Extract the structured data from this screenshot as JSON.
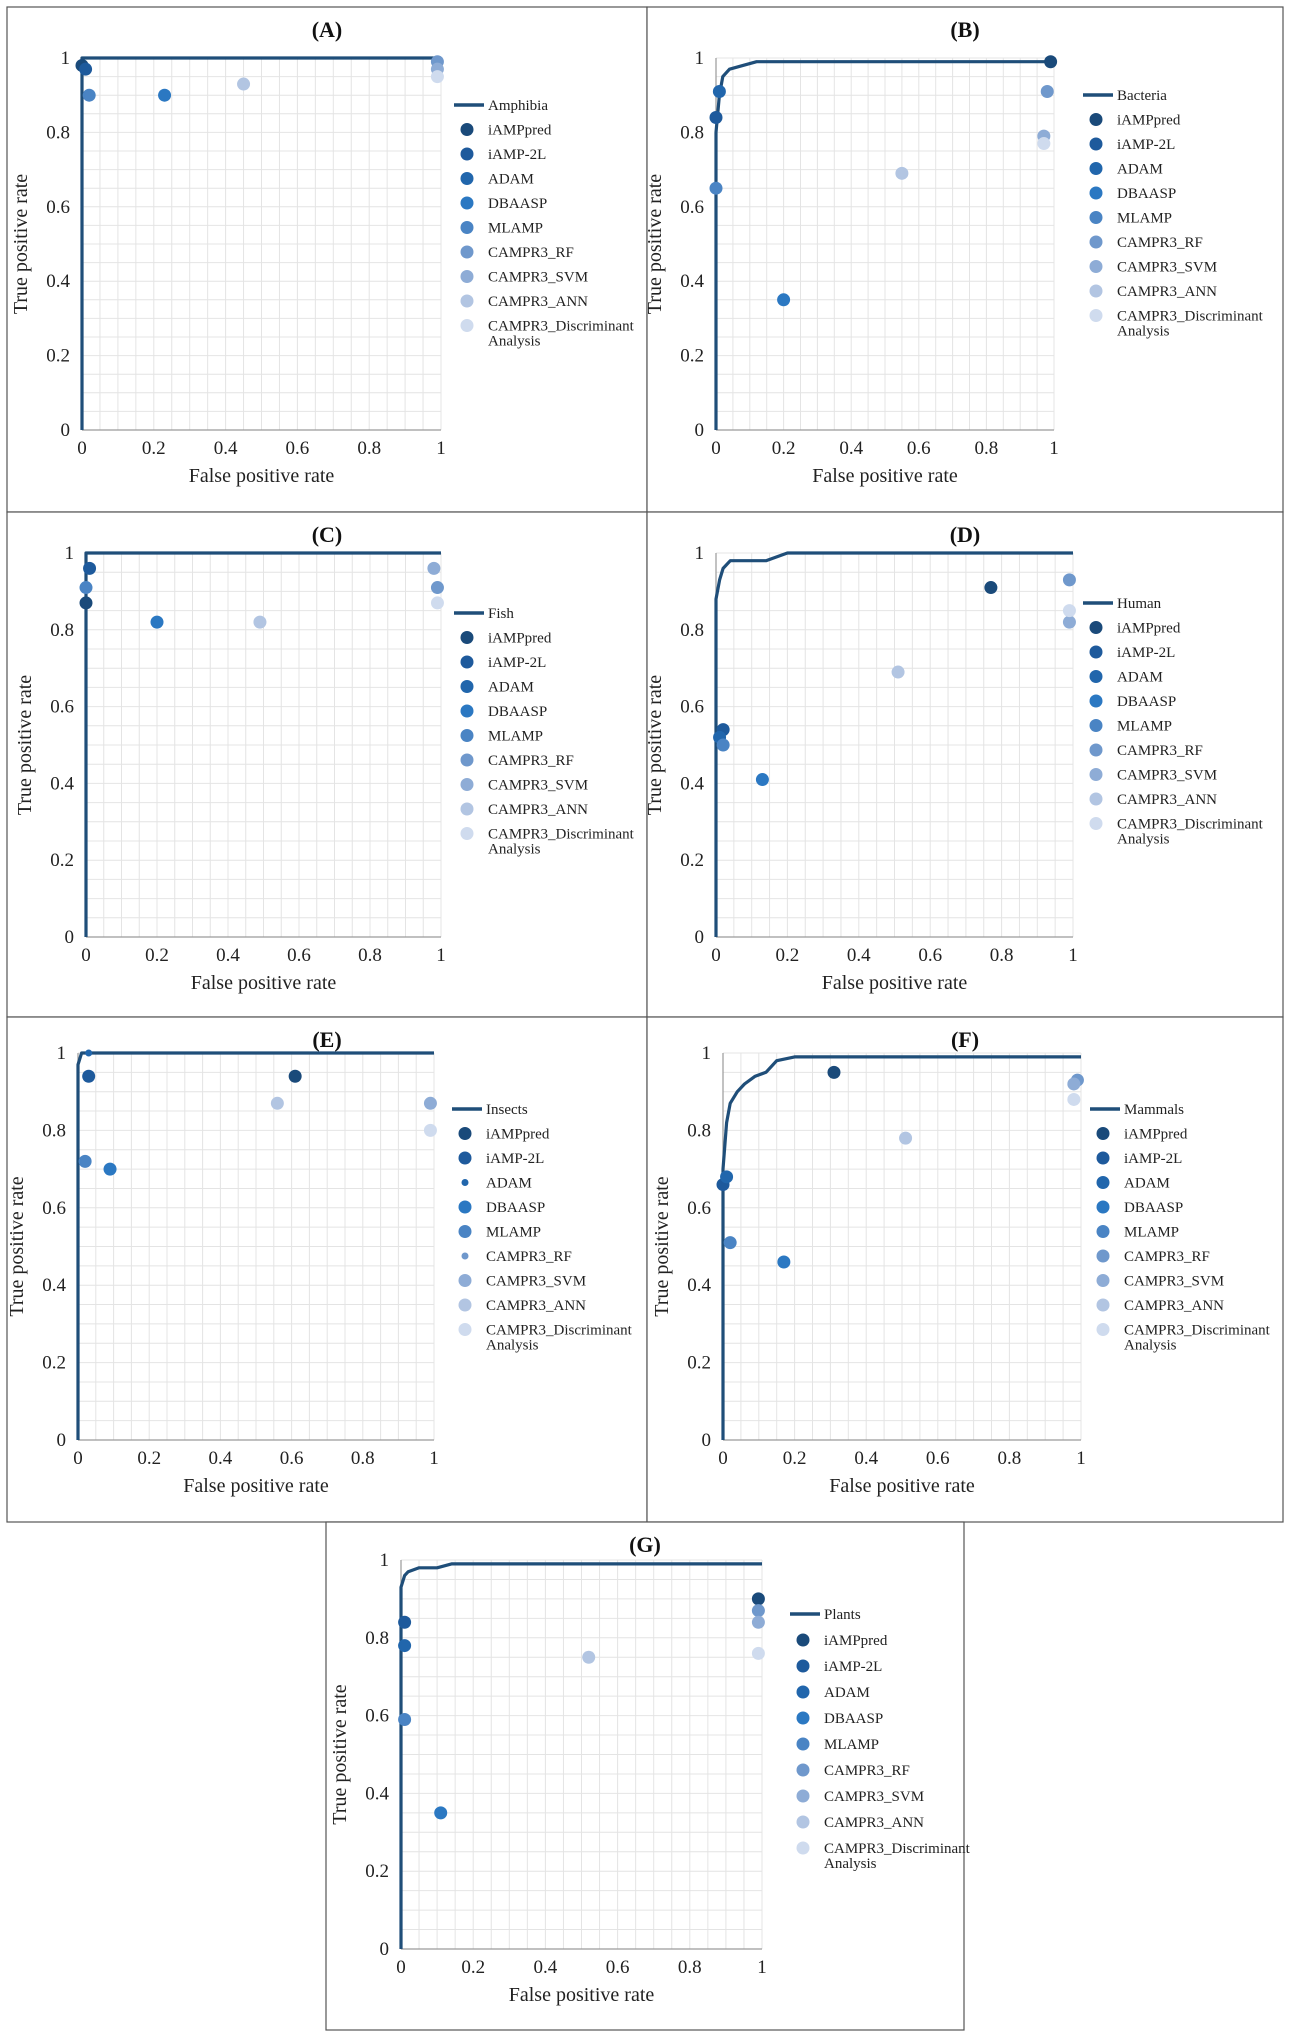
{
  "colors": {
    "roc": "#1f4e79",
    "iAMPpred": "#1a4a7a",
    "iAMP-2L": "#1e5a9c",
    "ADAM": "#2166ac",
    "DBAASP": "#2b78c2",
    "MLAMP": "#4a84c4",
    "CAMPR3_RF": "#6f98cc",
    "CAMPR3_SVM": "#8eacd6",
    "CAMPR3_ANN": "#b2c5e2",
    "CAMPR3_Discriminant": "#cfdbee"
  },
  "common": {
    "xlabel": "False positive rate",
    "ylabel": "True positive rate",
    "x_ticks": [
      "0",
      "0.2",
      "0.4",
      "0.6",
      "0.8",
      "1"
    ],
    "y_ticks": [
      "0",
      "0.2",
      "0.4",
      "0.6",
      "0.8",
      "1"
    ],
    "methods": [
      {
        "key": "iAMPpred",
        "label": "iAMPpred"
      },
      {
        "key": "iAMP-2L",
        "label": "iAMP-2L"
      },
      {
        "key": "ADAM",
        "label": "ADAM"
      },
      {
        "key": "DBAASP",
        "label": "DBAASP"
      },
      {
        "key": "MLAMP",
        "label": "MLAMP"
      },
      {
        "key": "CAMPR3_RF",
        "label": "CAMPR3_RF"
      },
      {
        "key": "CAMPR3_SVM",
        "label": "CAMPR3_SVM"
      },
      {
        "key": "CAMPR3_ANN",
        "label": "CAMPR3_ANN"
      },
      {
        "key": "CAMPR3_Discriminant",
        "label": "CAMPR3_Discriminant",
        "label2": "Analysis"
      }
    ]
  },
  "chart_data": [
    {
      "type": "scatter",
      "title": "(A)",
      "series_name": "Amphibia",
      "xlabel": "False positive rate",
      "ylabel": "True positive rate",
      "xlim": [
        0,
        1
      ],
      "ylim": [
        0,
        1
      ],
      "grid": true,
      "legend": "right",
      "roc": [
        [
          0,
          0
        ],
        [
          0,
          1
        ],
        [
          1,
          1
        ]
      ],
      "points": [
        {
          "m": "iAMPpred",
          "x": 0.0,
          "y": 0.98
        },
        {
          "m": "iAMP-2L",
          "x": 0.01,
          "y": 0.97
        },
        {
          "m": "DBAASP",
          "x": 0.23,
          "y": 0.9
        },
        {
          "m": "MLAMP",
          "x": 0.02,
          "y": 0.9
        },
        {
          "m": "CAMPR3_RF",
          "x": 0.99,
          "y": 0.99
        },
        {
          "m": "CAMPR3_SVM",
          "x": 0.99,
          "y": 0.97
        },
        {
          "m": "CAMPR3_ANN",
          "x": 0.45,
          "y": 0.93
        },
        {
          "m": "CAMPR3_Discriminant",
          "x": 0.99,
          "y": 0.95
        }
      ]
    },
    {
      "type": "scatter",
      "title": "(B)",
      "series_name": "Bacteria",
      "xlabel": "False positive rate",
      "ylabel": "True positive rate",
      "xlim": [
        0,
        1
      ],
      "ylim": [
        0,
        1
      ],
      "grid": true,
      "legend": "right",
      "roc": [
        [
          0,
          0
        ],
        [
          0,
          0.8
        ],
        [
          0.01,
          0.9
        ],
        [
          0.02,
          0.95
        ],
        [
          0.04,
          0.97
        ],
        [
          0.08,
          0.98
        ],
        [
          0.12,
          0.99
        ],
        [
          1,
          0.99
        ]
      ],
      "points": [
        {
          "m": "iAMPpred",
          "x": 0.99,
          "y": 0.99
        },
        {
          "m": "iAMP-2L",
          "x": 0.0,
          "y": 0.84
        },
        {
          "m": "ADAM",
          "x": 0.01,
          "y": 0.91
        },
        {
          "m": "DBAASP",
          "x": 0.2,
          "y": 0.35
        },
        {
          "m": "MLAMP",
          "x": 0.0,
          "y": 0.65
        },
        {
          "m": "CAMPR3_RF",
          "x": 0.98,
          "y": 0.91
        },
        {
          "m": "CAMPR3_SVM",
          "x": 0.97,
          "y": 0.79
        },
        {
          "m": "CAMPR3_ANN",
          "x": 0.55,
          "y": 0.69
        },
        {
          "m": "CAMPR3_Discriminant",
          "x": 0.97,
          "y": 0.77
        }
      ]
    },
    {
      "type": "scatter",
      "title": "(C)",
      "series_name": "Fish",
      "xlabel": "False positive rate",
      "ylabel": "True positive rate",
      "xlim": [
        0,
        1
      ],
      "ylim": [
        0,
        1
      ],
      "grid": true,
      "legend": "right",
      "roc": [
        [
          0,
          0
        ],
        [
          0,
          1
        ],
        [
          1,
          1
        ]
      ],
      "points": [
        {
          "m": "iAMPpred",
          "x": 0.0,
          "y": 0.87
        },
        {
          "m": "iAMP-2L",
          "x": 0.01,
          "y": 0.96
        },
        {
          "m": "DBAASP",
          "x": 0.2,
          "y": 0.82
        },
        {
          "m": "MLAMP",
          "x": 0.0,
          "y": 0.91
        },
        {
          "m": "CAMPR3_RF",
          "x": 0.99,
          "y": 0.91
        },
        {
          "m": "CAMPR3_SVM",
          "x": 0.98,
          "y": 0.96
        },
        {
          "m": "CAMPR3_ANN",
          "x": 0.49,
          "y": 0.82
        },
        {
          "m": "CAMPR3_Discriminant",
          "x": 0.99,
          "y": 0.87
        }
      ]
    },
    {
      "type": "scatter",
      "title": "(D)",
      "series_name": "Human",
      "xlabel": "False positive rate",
      "ylabel": "True positive rate",
      "xlim": [
        0,
        1
      ],
      "ylim": [
        0,
        1
      ],
      "grid": true,
      "legend": "right",
      "roc": [
        [
          0,
          0
        ],
        [
          0,
          0.88
        ],
        [
          0.01,
          0.93
        ],
        [
          0.02,
          0.96
        ],
        [
          0.04,
          0.98
        ],
        [
          0.14,
          0.98
        ],
        [
          0.2,
          1
        ],
        [
          1,
          1
        ]
      ],
      "points": [
        {
          "m": "iAMPpred",
          "x": 0.77,
          "y": 0.91
        },
        {
          "m": "iAMP-2L",
          "x": 0.02,
          "y": 0.54
        },
        {
          "m": "ADAM",
          "x": 0.01,
          "y": 0.52
        },
        {
          "m": "DBAASP",
          "x": 0.13,
          "y": 0.41
        },
        {
          "m": "MLAMP",
          "x": 0.02,
          "y": 0.5
        },
        {
          "m": "CAMPR3_RF",
          "x": 0.99,
          "y": 0.93
        },
        {
          "m": "CAMPR3_SVM",
          "x": 0.99,
          "y": 0.82
        },
        {
          "m": "CAMPR3_ANN",
          "x": 0.51,
          "y": 0.69
        },
        {
          "m": "CAMPR3_Discriminant",
          "x": 0.99,
          "y": 0.85
        }
      ]
    },
    {
      "type": "scatter",
      "title": "(E)",
      "series_name": "Insects",
      "xlabel": "False positive rate",
      "ylabel": "True positive rate",
      "xlim": [
        0,
        1
      ],
      "ylim": [
        0,
        1
      ],
      "grid": true,
      "legend": "right",
      "roc": [
        [
          0,
          0
        ],
        [
          0,
          0.97
        ],
        [
          0.01,
          1
        ],
        [
          1,
          1
        ]
      ],
      "points": [
        {
          "m": "iAMPpred",
          "x": 0.61,
          "y": 0.94
        },
        {
          "m": "iAMP-2L",
          "x": 0.03,
          "y": 0.94
        },
        {
          "m": "ADAM",
          "x": 0.03,
          "y": 1.0
        },
        {
          "m": "DBAASP",
          "x": 0.09,
          "y": 0.7
        },
        {
          "m": "MLAMP",
          "x": 0.02,
          "y": 0.72
        },
        {
          "m": "CAMPR3_SVM",
          "x": 0.99,
          "y": 0.87
        },
        {
          "m": "CAMPR3_ANN",
          "x": 0.56,
          "y": 0.87
        },
        {
          "m": "CAMPR3_Discriminant",
          "x": 0.99,
          "y": 0.8
        }
      ]
    },
    {
      "type": "scatter",
      "title": "(F)",
      "series_name": "Mammals",
      "xlabel": "False positive rate",
      "ylabel": "True positive rate",
      "xlim": [
        0,
        1
      ],
      "ylim": [
        0,
        1
      ],
      "grid": true,
      "legend": "right",
      "roc": [
        [
          0,
          0
        ],
        [
          0,
          0.7
        ],
        [
          0.01,
          0.82
        ],
        [
          0.02,
          0.87
        ],
        [
          0.04,
          0.9
        ],
        [
          0.06,
          0.92
        ],
        [
          0.09,
          0.94
        ],
        [
          0.12,
          0.95
        ],
        [
          0.15,
          0.98
        ],
        [
          0.2,
          0.99
        ],
        [
          1,
          0.99
        ]
      ],
      "points": [
        {
          "m": "iAMPpred",
          "x": 0.31,
          "y": 0.95
        },
        {
          "m": "iAMP-2L",
          "x": 0.0,
          "y": 0.66
        },
        {
          "m": "ADAM",
          "x": 0.01,
          "y": 0.68
        },
        {
          "m": "DBAASP",
          "x": 0.17,
          "y": 0.46
        },
        {
          "m": "MLAMP",
          "x": 0.02,
          "y": 0.51
        },
        {
          "m": "CAMPR3_RF",
          "x": 0.99,
          "y": 0.93
        },
        {
          "m": "CAMPR3_SVM",
          "x": 0.98,
          "y": 0.92
        },
        {
          "m": "CAMPR3_ANN",
          "x": 0.51,
          "y": 0.78
        },
        {
          "m": "CAMPR3_Discriminant",
          "x": 0.98,
          "y": 0.88
        }
      ]
    },
    {
      "type": "scatter",
      "title": "(G)",
      "series_name": "Plants",
      "xlabel": "False positive rate",
      "ylabel": "True positive rate",
      "xlim": [
        0,
        1
      ],
      "ylim": [
        0,
        1
      ],
      "grid": true,
      "legend": "right",
      "roc": [
        [
          0,
          0
        ],
        [
          0,
          0.93
        ],
        [
          0.01,
          0.96
        ],
        [
          0.02,
          0.97
        ],
        [
          0.05,
          0.98
        ],
        [
          0.1,
          0.98
        ],
        [
          0.14,
          0.99
        ],
        [
          1,
          0.99
        ]
      ],
      "points": [
        {
          "m": "iAMPpred",
          "x": 0.99,
          "y": 0.9
        },
        {
          "m": "iAMP-2L",
          "x": 0.01,
          "y": 0.84
        },
        {
          "m": "ADAM",
          "x": 0.01,
          "y": 0.78
        },
        {
          "m": "DBAASP",
          "x": 0.11,
          "y": 0.35
        },
        {
          "m": "MLAMP",
          "x": 0.01,
          "y": 0.59
        },
        {
          "m": "CAMPR3_RF",
          "x": 0.99,
          "y": 0.87
        },
        {
          "m": "CAMPR3_SVM",
          "x": 0.99,
          "y": 0.84
        },
        {
          "m": "CAMPR3_ANN",
          "x": 0.52,
          "y": 0.75
        },
        {
          "m": "CAMPR3_Discriminant",
          "x": 0.99,
          "y": 0.76
        }
      ]
    }
  ]
}
